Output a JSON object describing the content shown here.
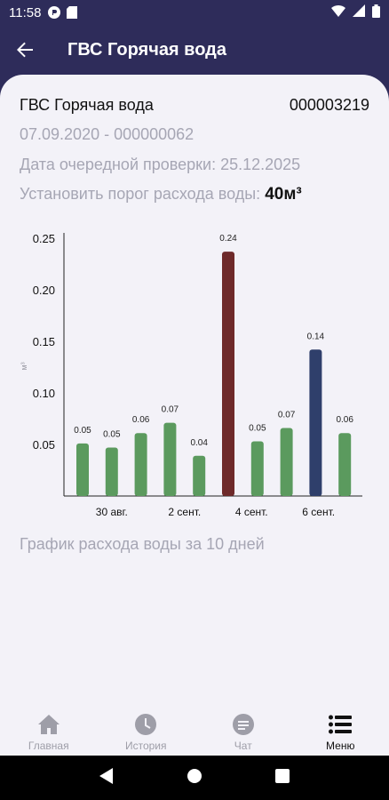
{
  "statusbar": {
    "time": "11:58"
  },
  "appbar": {
    "title": "ГВС Горячая вода"
  },
  "meter": {
    "name": "ГВС Горячая вода",
    "number": "000003219",
    "date_line": "07.09.2020 - 000000062",
    "next_check_label": "Дата очередной проверки: 25.12.2025",
    "threshold_label": "Установить порог расхода воды:",
    "threshold_value": "40м³"
  },
  "chart_data": {
    "type": "bar",
    "ylabel": "м³",
    "ylim": [
      0,
      0.25
    ],
    "yticks": [
      "0.05",
      "0.10",
      "0.15",
      "0.20",
      "0.25"
    ],
    "values": [
      0.05,
      0.05,
      0.06,
      0.07,
      0.04,
      0.24,
      0.05,
      0.07,
      0.14,
      0.06
    ],
    "value_labels": [
      "0.05",
      "0.05",
      "0.06",
      "0.07",
      "0.04",
      "0.24",
      "0.05",
      "0.07",
      "0.14",
      "0.06"
    ],
    "heights": [
      0.051,
      0.047,
      0.061,
      0.071,
      0.039,
      0.237,
      0.053,
      0.066,
      0.142,
      0.061
    ],
    "colors": [
      "#5b9a5e",
      "#5b9a5e",
      "#5b9a5e",
      "#5b9a5e",
      "#5b9a5e",
      "#6e2a2a",
      "#5b9a5e",
      "#5b9a5e",
      "#2f3f6b",
      "#5b9a5e"
    ],
    "xticks": [
      {
        "index": 1,
        "label": "30 авг."
      },
      {
        "index": 3.5,
        "label": "2 сент."
      },
      {
        "index": 5.8,
        "label": "4 сент."
      },
      {
        "index": 8.1,
        "label": "6 сент."
      }
    ]
  },
  "chart_caption": "График расхода воды за 10 дней",
  "bottomnav": {
    "items": [
      {
        "label": "Главная",
        "icon": "home-icon"
      },
      {
        "label": "История",
        "icon": "clock-icon"
      },
      {
        "label": "Чат",
        "icon": "chat-icon"
      },
      {
        "label": "Меню",
        "icon": "menu-icon"
      }
    ]
  },
  "colors": {
    "header": "#2e2c5a",
    "sheet": "#f3f2f8",
    "bar_normal": "#5b9a5e",
    "bar_high": "#6e2a2a",
    "bar_selected": "#2f3f6b"
  }
}
